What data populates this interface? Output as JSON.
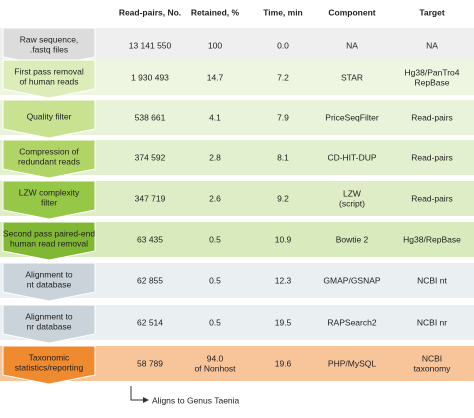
{
  "header": {
    "columns": [
      "Read-pairs, No.",
      "Retained, %",
      "Time, min",
      "Component",
      "Target"
    ]
  },
  "rows": [
    {
      "step": [
        "Raw sequence,",
        ".fastq files"
      ],
      "read_pairs": [
        "13 141 550"
      ],
      "retained": [
        "100"
      ],
      "time": [
        "0.0"
      ],
      "component": [
        "NA"
      ],
      "target": [
        "NA"
      ]
    },
    {
      "step": [
        "First pass removal",
        "of human reads"
      ],
      "read_pairs": [
        "1 930 493"
      ],
      "retained": [
        "14.7"
      ],
      "time": [
        "7.2"
      ],
      "component": [
        "STAR"
      ],
      "target": [
        "Hg38/PanTro4",
        "RepBase"
      ]
    },
    {
      "step": [
        "Quality filter"
      ],
      "read_pairs": [
        "538 661"
      ],
      "retained": [
        "4.1"
      ],
      "time": [
        "7.9"
      ],
      "component": [
        "PriceSeqFilter"
      ],
      "target": [
        "Read-pairs"
      ]
    },
    {
      "step": [
        "Compression of",
        "redundant reads"
      ],
      "read_pairs": [
        "374 592"
      ],
      "retained": [
        "2.8"
      ],
      "time": [
        "8.1"
      ],
      "component": [
        "CD-HIT-DUP"
      ],
      "target": [
        "Read-pairs"
      ]
    },
    {
      "step": [
        "LZW complexity",
        "filter"
      ],
      "read_pairs": [
        "347 719"
      ],
      "retained": [
        "2.6"
      ],
      "time": [
        "9.2"
      ],
      "component": [
        "LZW",
        "(script)"
      ],
      "target": [
        "Read-pairs"
      ]
    },
    {
      "step": [
        "Second pass paired-end",
        "human read removal"
      ],
      "read_pairs": [
        "63 435"
      ],
      "retained": [
        "0.5"
      ],
      "time": [
        "10.9"
      ],
      "component": [
        "Bowtie 2"
      ],
      "target": [
        "Hg38/RepBase"
      ]
    },
    {
      "step": [
        "Alignment to",
        "nt database"
      ],
      "read_pairs": [
        "62 855"
      ],
      "retained": [
        "0.5"
      ],
      "time": [
        "12.3"
      ],
      "component": [
        "GMAP/GSNAP"
      ],
      "target": [
        "NCBI nt"
      ]
    },
    {
      "step": [
        "Alignment to",
        "nr database"
      ],
      "read_pairs": [
        "62 514"
      ],
      "retained": [
        "0.5"
      ],
      "time": [
        "19.5"
      ],
      "component": [
        "RAPSearch2"
      ],
      "target": [
        "NCBI nr"
      ]
    },
    {
      "step": [
        "Taxonomic",
        "statistics/reporting"
      ],
      "read_pairs": [
        "58 789"
      ],
      "retained": [
        "94.0",
        "of Nonhost"
      ],
      "time": [
        "19.6"
      ],
      "component": [
        "PHP/MySQL"
      ],
      "target": [
        "NCBI",
        "taxonomy"
      ]
    }
  ],
  "footnote": "Aligns to Genus Taenia"
}
